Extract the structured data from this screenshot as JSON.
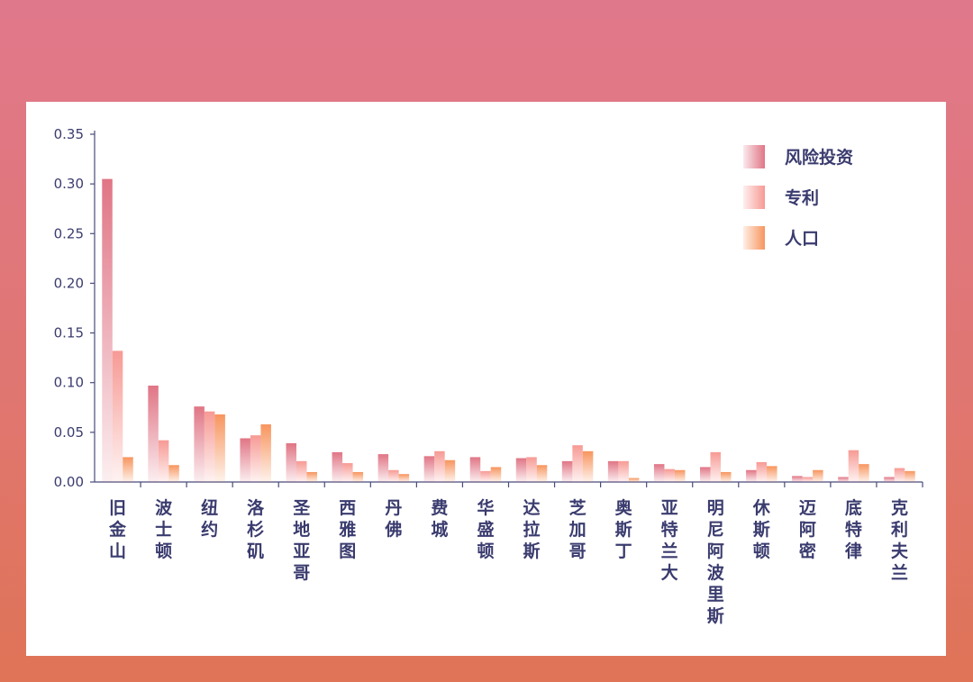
{
  "colors": {
    "background_top": "#e0788c",
    "background_bottom": "#df7457",
    "card": "#ffffff",
    "text": "#3a3b6e",
    "axis": "#4a4b7a"
  },
  "chart_data": {
    "type": "bar",
    "title": "",
    "xlabel": "",
    "ylabel": "",
    "ylim": [
      0,
      0.35
    ],
    "yticks": [
      "0.00",
      "0.05",
      "0.10",
      "0.15",
      "0.20",
      "0.25",
      "0.30",
      "0.35"
    ],
    "grid": false,
    "legend_position": "top-right",
    "categories": [
      "旧金山",
      "波士顿",
      "纽约",
      "洛杉矶",
      "圣地亚哥",
      "西雅图",
      "丹佛",
      "费城",
      "华盛顿",
      "达拉斯",
      "芝加哥",
      "奥斯丁",
      "亚特兰大",
      "明尼阿波里斯",
      "休斯顿",
      "迈阿密",
      "底特律",
      "克利夫兰"
    ],
    "series": [
      {
        "name": "风险投资",
        "color": "#e07585",
        "values": [
          0.305,
          0.097,
          0.076,
          0.044,
          0.039,
          0.03,
          0.028,
          0.026,
          0.025,
          0.024,
          0.021,
          0.021,
          0.018,
          0.015,
          0.012,
          0.006,
          0.005,
          0.005
        ]
      },
      {
        "name": "专利",
        "color": "#f79a94",
        "values": [
          0.132,
          0.042,
          0.071,
          0.047,
          0.021,
          0.019,
          0.012,
          0.031,
          0.011,
          0.025,
          0.037,
          0.021,
          0.013,
          0.03,
          0.02,
          0.005,
          0.032,
          0.014
        ]
      },
      {
        "name": "人口",
        "color": "#f7955e",
        "values": [
          0.025,
          0.017,
          0.068,
          0.058,
          0.01,
          0.01,
          0.008,
          0.022,
          0.015,
          0.017,
          0.031,
          0.004,
          0.012,
          0.01,
          0.016,
          0.012,
          0.018,
          0.011
        ]
      }
    ]
  }
}
